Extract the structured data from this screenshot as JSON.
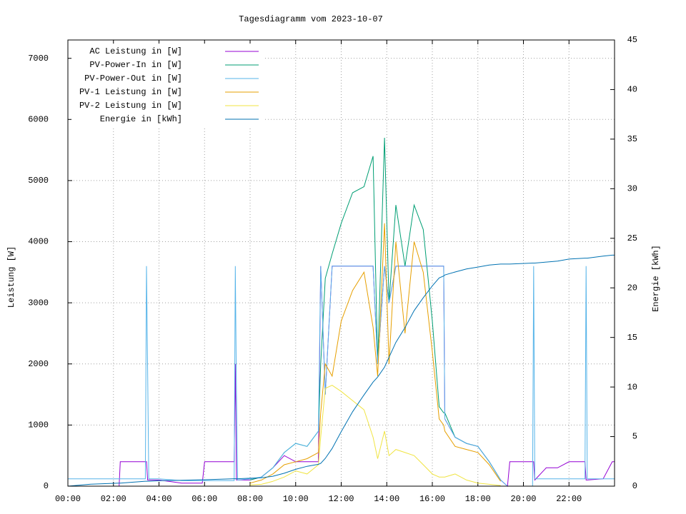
{
  "chart_data": {
    "type": "line",
    "title": "Tagesdiagramm vom 2023-10-07",
    "ylabel": "Leistung [W]",
    "y2label": "Energie [kWh]",
    "xlim": [
      0,
      24
    ],
    "xticks": [
      {
        "value": 0,
        "label": "00:00"
      },
      {
        "value": 2,
        "label": "02:00"
      },
      {
        "value": 4,
        "label": "04:00"
      },
      {
        "value": 6,
        "label": "06:00"
      },
      {
        "value": 8,
        "label": "08:00"
      },
      {
        "value": 10,
        "label": "10:00"
      },
      {
        "value": 12,
        "label": "12:00"
      },
      {
        "value": 14,
        "label": "14:00"
      },
      {
        "value": 16,
        "label": "16:00"
      },
      {
        "value": 18,
        "label": "18:00"
      },
      {
        "value": 20,
        "label": "20:00"
      },
      {
        "value": 22,
        "label": "22:00"
      }
    ],
    "ylim": [
      0,
      7300
    ],
    "yticks": [
      0,
      1000,
      2000,
      3000,
      4000,
      5000,
      6000,
      7000
    ],
    "y2lim": [
      0,
      45
    ],
    "y2ticks": [
      0,
      5,
      10,
      15,
      20,
      25,
      30,
      35,
      40,
      45
    ],
    "grid": true,
    "legend": "top-left",
    "x": [
      0,
      1,
      2.25,
      2.3,
      3.4,
      3.45,
      3.5,
      3.55,
      4,
      5,
      5.9,
      6,
      7.3,
      7.35,
      7.4,
      7.45,
      8,
      8.5,
      9,
      9.5,
      10,
      10.5,
      11,
      11.1,
      11.3,
      11.6,
      12,
      12.5,
      13,
      13.4,
      13.6,
      13.9,
      14.1,
      14.4,
      14.8,
      15.2,
      15.6,
      16,
      16.3,
      16.5,
      16.55,
      17,
      17.5,
      18,
      18.5,
      19,
      19.3,
      19.4,
      20.4,
      20.45,
      20.5,
      21,
      21.5,
      22,
      22.7,
      22.75,
      22.8,
      23.5,
      23.9,
      24
    ],
    "series": [
      {
        "name": "AC Leistung in [W]",
        "color": "#9400d3",
        "values": [
          0,
          0,
          0,
          400,
          400,
          400,
          100,
          100,
          100,
          50,
          50,
          400,
          400,
          2000,
          100,
          100,
          100,
          150,
          300,
          500,
          400,
          400,
          400,
          3600,
          1500,
          3600,
          3600,
          3600,
          3600,
          3600,
          2000,
          3600,
          3000,
          3600,
          3600,
          3600,
          3600,
          3600,
          3600,
          3600,
          1100,
          800,
          700,
          650,
          400,
          100,
          0,
          400,
          400,
          400,
          100,
          300,
          300,
          400,
          400,
          100,
          100,
          120,
          400,
          400
        ]
      },
      {
        "name": "PV-Power-In in [W]",
        "color": "#009e73",
        "values": [
          null,
          null,
          null,
          null,
          null,
          null,
          null,
          null,
          null,
          null,
          null,
          null,
          null,
          null,
          null,
          null,
          100,
          150,
          300,
          550,
          700,
          650,
          900,
          2000,
          3400,
          3800,
          4300,
          4800,
          4900,
          5400,
          2000,
          5700,
          3000,
          4600,
          3600,
          4600,
          4200,
          2700,
          1300,
          1200,
          1200,
          800,
          700,
          650,
          400,
          100,
          null,
          null,
          null,
          null,
          null,
          null,
          null,
          null,
          null,
          null,
          null,
          null,
          null,
          null
        ]
      },
      {
        "name": "PV-Power-Out in [W]",
        "color": "#56b4e9",
        "values": [
          120,
          120,
          120,
          120,
          120,
          3600,
          1900,
          120,
          120,
          90,
          90,
          90,
          90,
          3600,
          1500,
          100,
          120,
          150,
          300,
          550,
          700,
          650,
          900,
          3600,
          1500,
          3600,
          3600,
          3600,
          3600,
          3600,
          2000,
          3600,
          3000,
          3600,
          3600,
          3600,
          3600,
          3600,
          3600,
          3600,
          1100,
          800,
          700,
          650,
          400,
          100,
          0,
          0,
          0,
          3600,
          120,
          120,
          120,
          120,
          120,
          3600,
          120,
          120,
          120,
          120
        ]
      },
      {
        "name": "PV-1 Leistung in [W]",
        "color": "#e69f00",
        "values": [
          null,
          null,
          null,
          null,
          null,
          null,
          null,
          null,
          null,
          null,
          null,
          null,
          null,
          null,
          null,
          null,
          50,
          100,
          200,
          350,
          400,
          450,
          550,
          1200,
          2000,
          1800,
          2700,
          3200,
          3500,
          2600,
          1800,
          4300,
          2000,
          4000,
          2500,
          4000,
          3500,
          2200,
          1100,
          1000,
          900,
          650,
          600,
          550,
          350,
          80,
          null,
          null,
          null,
          null,
          null,
          null,
          null,
          null,
          null,
          null,
          null,
          null,
          null,
          null
        ]
      },
      {
        "name": "PV-2 Leistung in [W]",
        "color": "#f0e442",
        "values": [
          null,
          null,
          null,
          null,
          null,
          null,
          null,
          null,
          null,
          null,
          null,
          null,
          null,
          null,
          null,
          null,
          20,
          30,
          80,
          150,
          250,
          200,
          350,
          800,
          1600,
          1650,
          1550,
          1400,
          1250,
          800,
          450,
          900,
          500,
          600,
          550,
          500,
          350,
          200,
          150,
          150,
          150,
          200,
          100,
          50,
          30,
          10,
          null,
          null,
          null,
          null,
          null,
          null,
          null,
          null,
          null,
          null,
          null,
          null,
          null,
          null
        ]
      },
      {
        "name": "Energie in [kWh]",
        "color": "#0072b2",
        "axis": "y2",
        "values": [
          0,
          0.2,
          0.3,
          0.3,
          0.5,
          0.5,
          0.5,
          0.5,
          0.55,
          0.6,
          0.65,
          0.65,
          0.75,
          0.75,
          0.75,
          0.75,
          0.8,
          0.85,
          1.0,
          1.3,
          1.7,
          2.0,
          2.2,
          2.3,
          2.8,
          3.8,
          5.5,
          7.5,
          9.2,
          10.5,
          11,
          12,
          13,
          14.5,
          16,
          17.7,
          19,
          20.2,
          21,
          21.2,
          21.3,
          21.6,
          21.9,
          22.1,
          22.3,
          22.4,
          22.4,
          22.4,
          22.5,
          22.5,
          22.5,
          22.6,
          22.7,
          22.9,
          23,
          23,
          23,
          23.2,
          23.3,
          23.3
        ]
      }
    ]
  }
}
